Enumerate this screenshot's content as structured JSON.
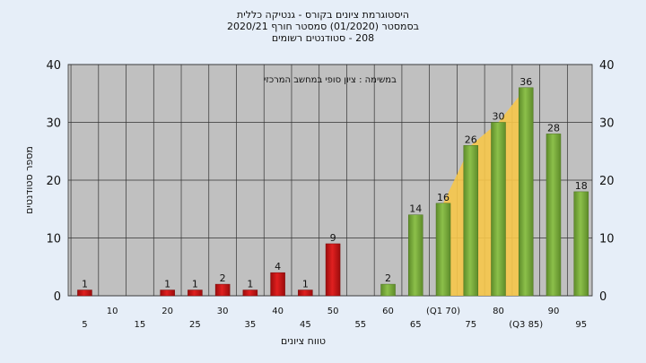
{
  "title_lines": [
    "היסטוגרמת ציונים בקורס - גנטיקה כללית",
    "בסמסטר  (01/2020)  סמסטר חורף  2020/21",
    "208 - סטודנטים רשומים"
  ],
  "chart_data": {
    "type": "bar",
    "annotation": "במשימה : ציון סופי במחשב המרכזי",
    "xlabel": "טווח ציונים",
    "ylabel": "מספר סטודנטים",
    "ylim": [
      0,
      40
    ],
    "yticks": [
      0,
      10,
      20,
      30,
      40
    ],
    "grid": true,
    "categories": [
      "5",
      "10",
      "15",
      "20",
      "25",
      "30",
      "35",
      "40",
      "45",
      "50",
      "55",
      "60",
      "65",
      "70",
      "75",
      "80",
      "85",
      "90",
      "95"
    ],
    "category_labels": [
      "5",
      "10",
      "15",
      "20",
      "25",
      "30",
      "35",
      "40",
      "45",
      "50",
      "55",
      "60",
      "65",
      "(Q1 70)",
      "75",
      "80",
      "(Q3 85)",
      "90",
      "95"
    ],
    "values": [
      1,
      0,
      0,
      1,
      1,
      2,
      1,
      4,
      1,
      9,
      0,
      2,
      14,
      16,
      26,
      30,
      36,
      28,
      18
    ],
    "data_labels": [
      "1",
      "",
      "",
      "1",
      "1",
      "2",
      "1",
      "4",
      "1",
      "9",
      "",
      "2",
      "14",
      "16",
      "26",
      "30",
      "36",
      "28",
      "18"
    ],
    "colors": {
      "fail": "#e02020",
      "pass": "#8cc04a",
      "quartile_area": "#f6c64a",
      "plot_bg": "#c0c0c0",
      "page_bg": "#e6eef8"
    },
    "pass_from": "60"
  }
}
